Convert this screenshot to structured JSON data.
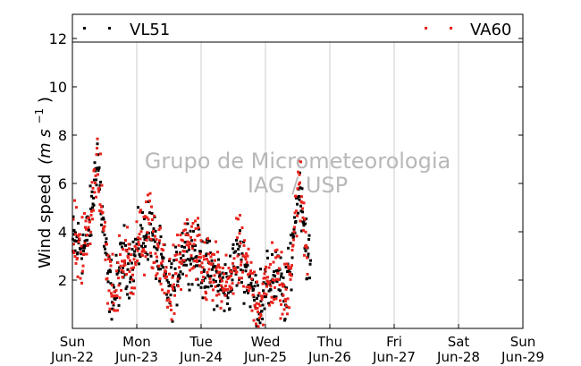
{
  "chart_data": {
    "type": "scatter",
    "title": "",
    "ylabel": "Wind speed",
    "ylabel_unit_math": "(m s",
    "ylabel_unit_exp": "−1",
    "ylabel_unit_close": ")",
    "xlabel": "",
    "ylim": [
      0,
      13
    ],
    "yticks": [
      2,
      4,
      6,
      8,
      10,
      12
    ],
    "xlim_days": [
      0,
      7
    ],
    "xticks": [
      {
        "day": 0,
        "weekday": "Sun",
        "date": "Jun-22"
      },
      {
        "day": 1,
        "weekday": "Mon",
        "date": "Jun-23"
      },
      {
        "day": 2,
        "weekday": "Tue",
        "date": "Jun-24"
      },
      {
        "day": 3,
        "weekday": "Wed",
        "date": "Jun-25"
      },
      {
        "day": 4,
        "weekday": "Thu",
        "date": "Jun-26"
      },
      {
        "day": 5,
        "weekday": "Fri",
        "date": "Jun-27"
      },
      {
        "day": 6,
        "weekday": "Sat",
        "date": "Jun-28"
      },
      {
        "day": 7,
        "weekday": "Sun",
        "date": "Jun-29"
      }
    ],
    "grid": "vertical",
    "legend_placement": "top",
    "series": [
      {
        "name": "VL51",
        "color": "#000000"
      },
      {
        "name": "VA60",
        "color": "#e8231d"
      }
    ],
    "trend_profile": {
      "days": [
        0.0,
        0.1,
        0.2,
        0.3,
        0.38,
        0.45,
        0.55,
        0.65,
        0.72,
        0.8,
        0.9,
        1.0,
        1.1,
        1.2,
        1.3,
        1.4,
        1.5,
        1.6,
        1.7,
        1.8,
        1.9,
        2.0,
        2.1,
        2.2,
        2.3,
        2.4,
        2.5,
        2.6,
        2.7,
        2.8,
        2.9,
        3.0,
        3.1,
        3.2,
        3.3,
        3.4,
        3.5,
        3.55,
        3.6,
        3.65,
        3.7
      ],
      "values": [
        3.6,
        3.5,
        3.4,
        5.0,
        7.4,
        4.8,
        2.0,
        1.4,
        2.3,
        3.0,
        2.6,
        3.3,
        3.8,
        4.2,
        3.2,
        2.4,
        1.6,
        2.0,
        3.3,
        3.4,
        3.1,
        2.6,
        2.4,
        2.2,
        1.8,
        1.6,
        2.6,
        3.0,
        2.4,
        1.4,
        1.2,
        1.6,
        2.3,
        2.0,
        1.2,
        3.1,
        5.8,
        5.5,
        4.2,
        3.0,
        2.4
      ]
    },
    "vl51_end_day": 3.7,
    "va60_end_day": 3.65,
    "samples_per_day": 144,
    "watermark_line1": "Grupo de Micrometeorologia",
    "watermark_line2": "IAG / USP"
  }
}
